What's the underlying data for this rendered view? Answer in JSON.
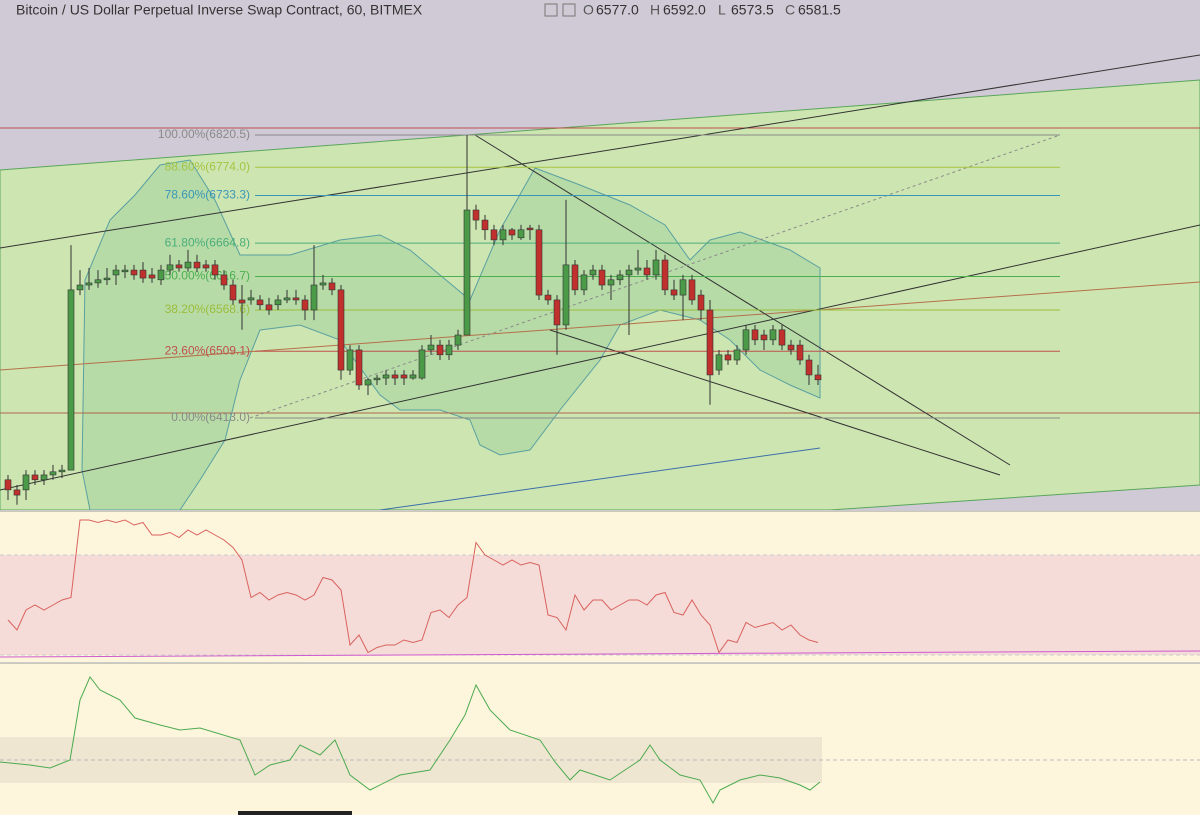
{
  "header": {
    "title": "Bitcoin / US Dollar Perpetual Inverse Swap Contract, 60, BITMEX",
    "ohlc": [
      {
        "key": "O",
        "value": "6577.0"
      },
      {
        "key": "H",
        "value": "6592.0"
      },
      {
        "key": "L",
        "value": "6573.5"
      },
      {
        "key": "C",
        "value": "6581.5"
      }
    ]
  },
  "chart_data": [
    {
      "type": "candlestick",
      "up_color": "#4a9a48",
      "down_color": "#c0302c",
      "open": [
        6324,
        6309.5,
        6309.5,
        6331,
        6324,
        6331,
        6335.5,
        6338,
        6597.5,
        6604.5,
        6607.5,
        6612,
        6619,
        6623.5,
        6626,
        6626,
        6619,
        6612,
        6626,
        6633.5,
        6629,
        6637.5,
        6633.5,
        6633.5,
        6619,
        6604.5,
        6583,
        6583,
        6583,
        6576,
        6576,
        6583,
        6586,
        6583,
        6568.5,
        6604.5,
        6607.5,
        6597.5,
        6482,
        6511,
        6460.5,
        6468,
        6470.5,
        6475,
        6475,
        6470.5,
        6470.5,
        6511,
        6518,
        6504,
        6518,
        6532.5,
        6712.5,
        6698,
        6684,
        6669.5,
        6684,
        6672.5,
        6686.5,
        6684,
        6590,
        6583,
        6547,
        6633.5,
        6597.5,
        6619,
        6626,
        6604.5,
        6612,
        6619,
        6626,
        6629,
        6619,
        6640.5,
        6597.5,
        6590,
        6612,
        6590,
        6568.5,
        6482,
        6504,
        6496.5,
        6511,
        6540,
        6532.5,
        6525.5,
        6540,
        6518,
        6518,
        6496.5,
        6475
      ],
      "high": [
        6331,
        6316.5,
        6338,
        6338,
        6338,
        6345.5,
        6345.5,
        6662,
        6626,
        6629,
        6626,
        6629,
        6633.5,
        6633.5,
        6633.5,
        6637.5,
        6629,
        6633.5,
        6648,
        6640.5,
        6655,
        6648,
        6640.5,
        6640.5,
        6626,
        6612,
        6604.5,
        6597.5,
        6590,
        6586,
        6590,
        6597.5,
        6597.5,
        6590,
        6662,
        6619,
        6614.5,
        6604.5,
        6518,
        6518,
        6470.5,
        6475,
        6482,
        6482,
        6482,
        6482,
        6518,
        6532.5,
        6525.5,
        6525.5,
        6540,
        6820.5,
        6720,
        6705.5,
        6691,
        6691,
        6686.5,
        6691,
        6691,
        6691,
        6597.5,
        6590,
        6727,
        6640.5,
        6626,
        6633.5,
        6633.5,
        6619,
        6626,
        6633.5,
        6655,
        6640.5,
        6655,
        6648,
        6612,
        6619,
        6619,
        6597.5,
        6583,
        6511,
        6511,
        6518,
        6547,
        6547,
        6540,
        6547,
        6547,
        6525.5,
        6525.5,
        6504,
        6489.5
      ],
      "low": [
        6295,
        6288,
        6295,
        6316.5,
        6316.5,
        6324,
        6326.5,
        6338,
        6590,
        6597.5,
        6600.5,
        6604.5,
        6604.5,
        6614.5,
        6612,
        6607.5,
        6607.5,
        6604.5,
        6619,
        6623.5,
        6623.5,
        6623.5,
        6623.5,
        6612,
        6597.5,
        6576,
        6540,
        6576,
        6568.5,
        6561.5,
        6568.5,
        6578.5,
        6576,
        6554,
        6554,
        6597.5,
        6590,
        6468,
        6475,
        6453.5,
        6446,
        6460.5,
        6460.5,
        6460.5,
        6460.5,
        6468,
        6468,
        6504,
        6496.5,
        6496.5,
        6511,
        6532.5,
        6684,
        6669.5,
        6662,
        6662,
        6669.5,
        6669.5,
        6669.5,
        6583,
        6576,
        6504,
        6540,
        6590,
        6590,
        6612,
        6597.5,
        6583,
        6604.5,
        6532.5,
        6619,
        6612,
        6612,
        6590,
        6583,
        6554,
        6576,
        6554,
        6432,
        6475,
        6489.5,
        6489.5,
        6504,
        6518,
        6511,
        6518,
        6511,
        6504,
        6489.5,
        6460.5,
        6460.5
      ],
      "close": [
        6309.5,
        6302,
        6331,
        6324,
        6331,
        6335.5,
        6338,
        6597.5,
        6604.5,
        6607.5,
        6612,
        6614.5,
        6626,
        6626,
        6619,
        6614.5,
        6614.5,
        6626,
        6633.5,
        6629,
        6637.5,
        6629,
        6629,
        6619,
        6604.5,
        6583,
        6578.5,
        6586,
        6576,
        6568.5,
        6583,
        6586,
        6583,
        6568.5,
        6604.5,
        6607.5,
        6597.5,
        6482,
        6511,
        6460.5,
        6468,
        6470.5,
        6475,
        6470.5,
        6470.5,
        6475,
        6511,
        6518,
        6504,
        6518,
        6532.5,
        6712.5,
        6698,
        6684,
        6669.5,
        6684,
        6676.5,
        6684,
        6684,
        6590,
        6583,
        6547,
        6633.5,
        6597.5,
        6619,
        6626,
        6604.5,
        6612,
        6619,
        6626,
        6629,
        6619,
        6640.5,
        6597.5,
        6590,
        6612,
        6583,
        6568.5,
        6475,
        6504,
        6496.5,
        6511,
        6540,
        6525.5,
        6525.5,
        6540,
        6518,
        6511,
        6496.5,
        6475,
        6468
      ],
      "fib_levels": [
        {
          "label": "100.00%(6820.5)",
          "price": 6820.5,
          "color": "#8a8a8a"
        },
        {
          "label": "88.60%(6774.0)",
          "price": 6774.0,
          "color": "#a6c444"
        },
        {
          "label": "78.60%(6733.3)",
          "price": 6733.3,
          "color": "#3b97b8"
        },
        {
          "label": "61.80%(6664.8)",
          "price": 6664.8,
          "color": "#4cae7a"
        },
        {
          "label": "50.00%(6616.7)",
          "price": 6616.7,
          "color": "#4caf50"
        },
        {
          "label": "38.20%(6568.6)",
          "price": 6568.6,
          "color": "#9cbd3a"
        },
        {
          "label": "23.60%(6509.1)",
          "price": 6509.1,
          "color": "#c0504d"
        },
        {
          "label": "0.00%(6413.0)",
          "price": 6413.0,
          "color": "#8a8a8a"
        }
      ]
    },
    {
      "type": "line",
      "color": "#d9625e",
      "bands": [
        30,
        70
      ],
      "values": [
        44,
        40,
        48,
        50,
        48,
        50,
        52,
        53,
        84,
        84,
        83,
        84,
        83,
        84,
        82,
        83,
        78,
        78,
        79,
        77,
        80,
        78,
        80,
        78,
        76,
        73,
        68,
        53,
        55,
        52,
        54,
        55,
        54,
        52,
        54,
        61,
        60,
        56,
        34,
        38,
        31,
        33,
        34,
        34,
        36,
        35,
        36,
        47,
        48,
        45,
        50,
        53,
        75,
        70,
        68,
        66,
        68,
        66,
        67,
        66,
        46,
        45,
        40,
        54,
        48,
        52,
        52,
        48,
        50,
        52,
        52,
        50,
        54,
        55,
        47,
        46,
        52,
        46,
        42,
        31,
        36,
        35,
        43,
        41,
        42,
        43,
        40,
        42,
        38,
        36,
        35
      ]
    }
  ]
}
